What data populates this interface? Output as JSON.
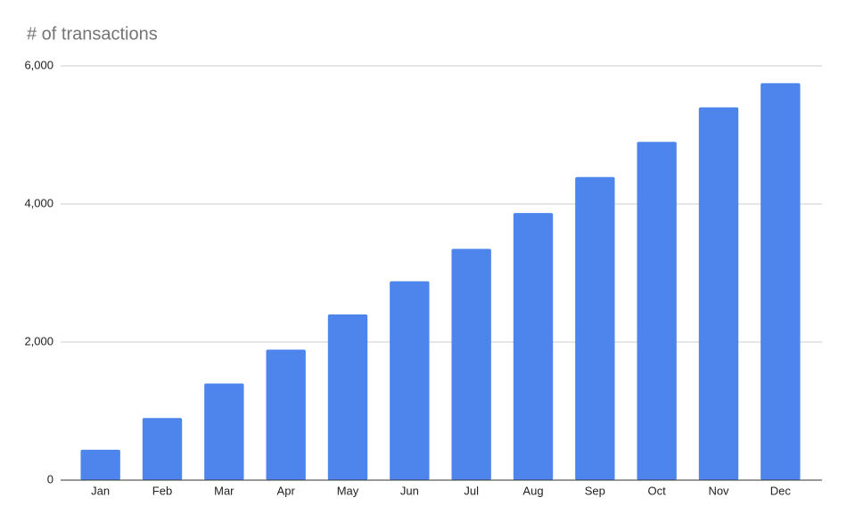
{
  "chart_data": {
    "type": "bar",
    "title": "# of transactions",
    "categories": [
      "Jan",
      "Feb",
      "Mar",
      "Apr",
      "May",
      "Jun",
      "Jul",
      "Aug",
      "Sep",
      "Oct",
      "Nov",
      "Dec"
    ],
    "values": [
      440,
      900,
      1400,
      1890,
      2400,
      2880,
      3350,
      3870,
      4390,
      4900,
      5400,
      5750
    ],
    "color": "#4e85ec",
    "ylim": [
      0,
      6000
    ],
    "yticks": [
      0,
      {
        "value": 2000,
        "label": "2,000"
      },
      {
        "value": 4000,
        "label": "4,000"
      },
      {
        "value": 6000,
        "label": "6,000"
      }
    ],
    "grid": true
  }
}
